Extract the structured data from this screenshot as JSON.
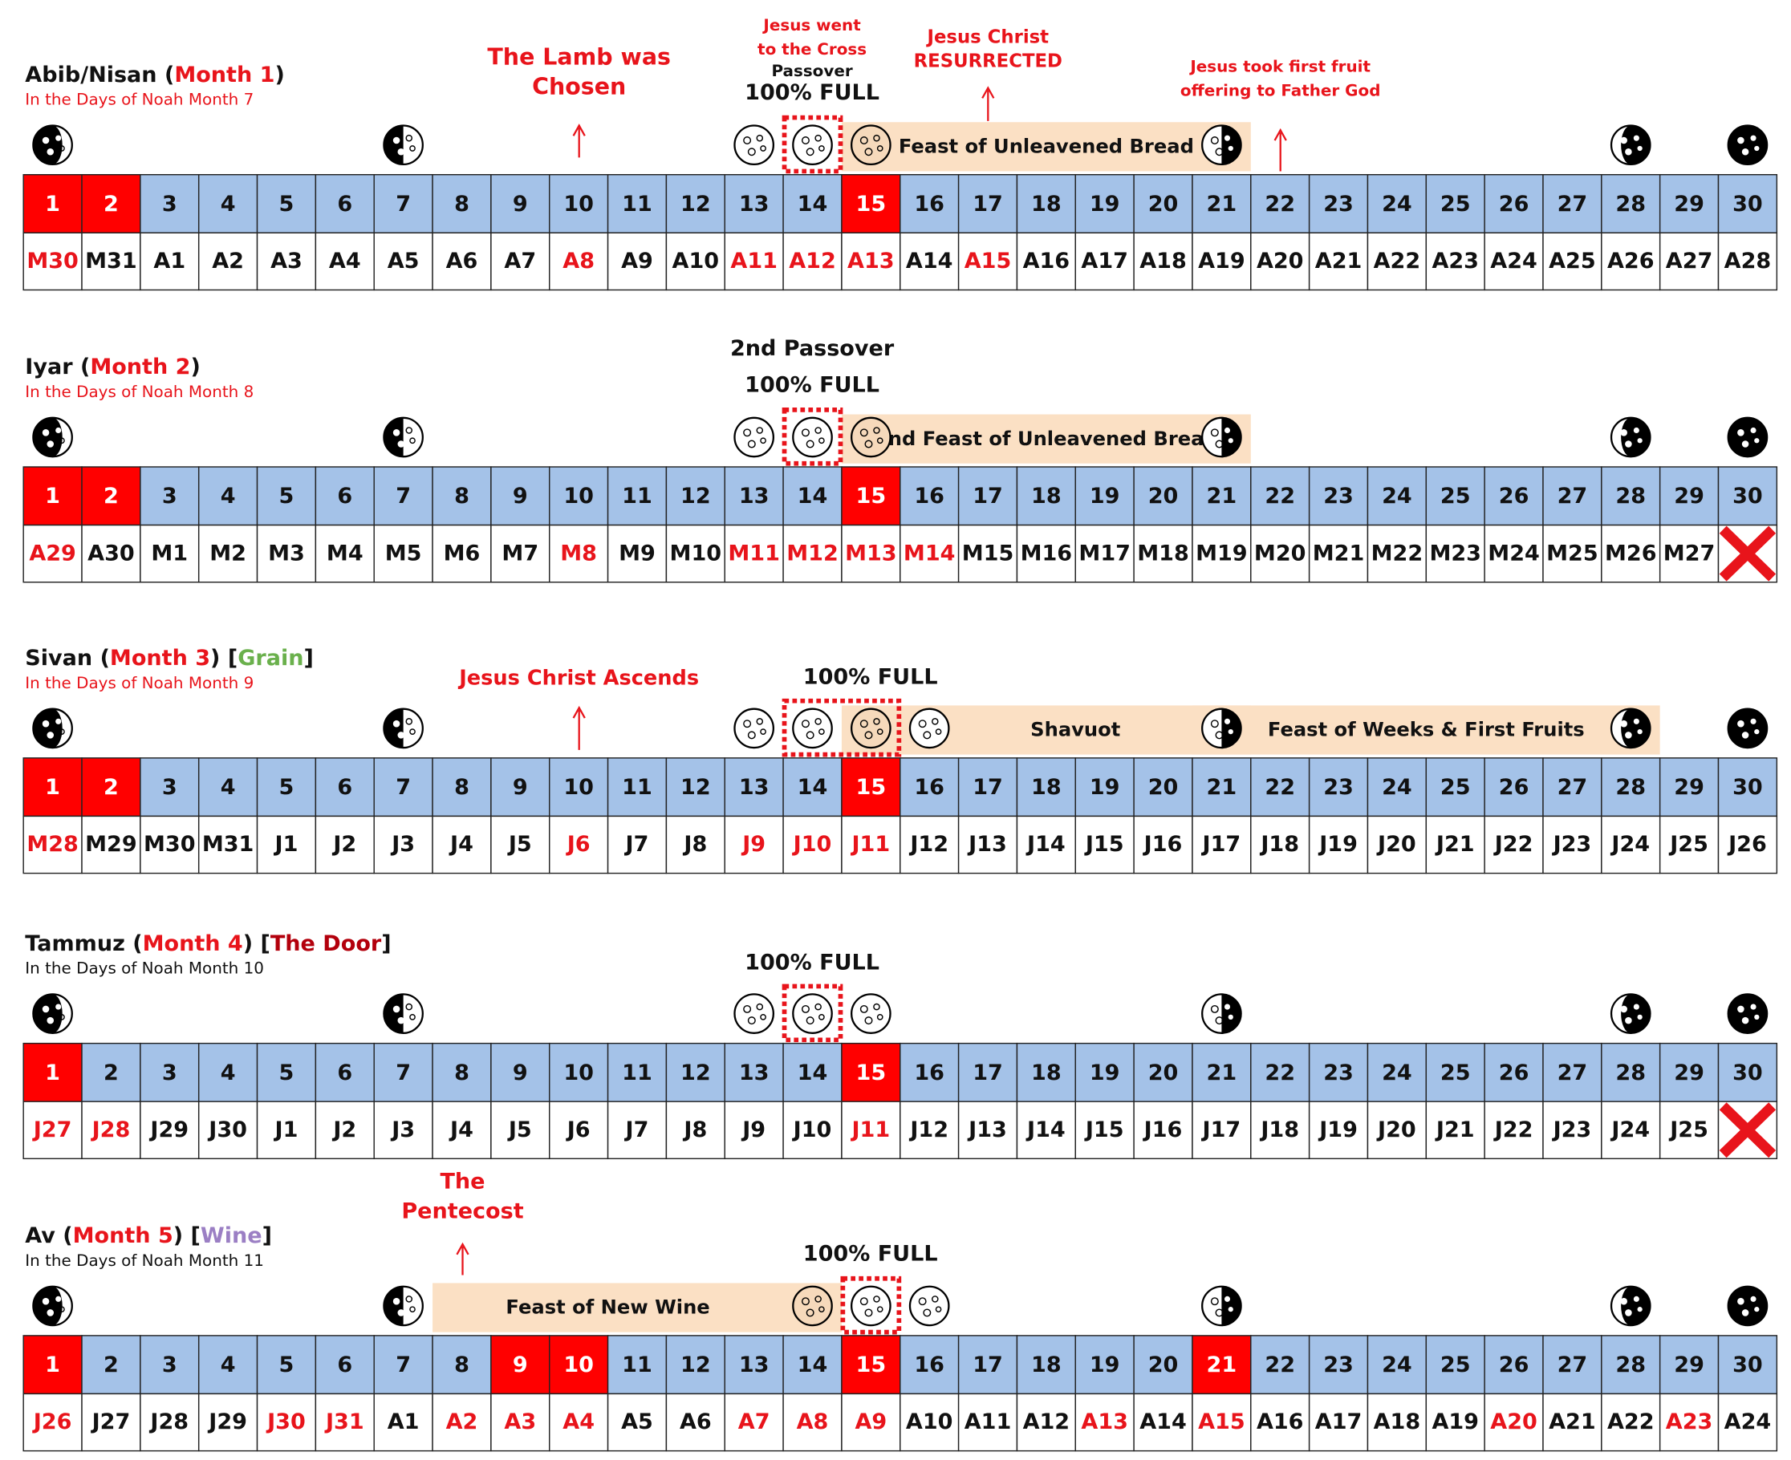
{
  "months": [
    {
      "title": [
        {
          "text": "Abib/Nisan (",
          "color": "#111111"
        },
        {
          "text": "Month 1",
          "color": "#e8141b"
        },
        {
          "text": ")",
          "color": "#111111"
        }
      ],
      "subtitle": "In the Days of Noah Month 7",
      "subtitle_color": "#e8141b",
      "days": [
        1,
        2,
        3,
        4,
        5,
        6,
        7,
        8,
        9,
        10,
        11,
        12,
        13,
        14,
        15,
        16,
        17,
        18,
        19,
        20,
        21,
        22,
        23,
        24,
        25,
        26,
        27,
        28,
        29,
        30
      ],
      "dates": [
        "M30",
        "M31",
        "A1",
        "A2",
        "A3",
        "A4",
        "A5",
        "A6",
        "A7",
        "A8",
        "A9",
        "A10",
        "A11",
        "A12",
        "A13",
        "A14",
        "A15",
        "A16",
        "A17",
        "A18",
        "A19",
        "A20",
        "A21",
        "A22",
        "A23",
        "A24",
        "A25",
        "A26",
        "A27",
        "A28"
      ],
      "highlight_days": [
        1,
        2,
        15
      ],
      "red_dates": [
        1,
        10,
        13,
        14,
        15,
        17
      ],
      "moons": [
        {
          "day": 1,
          "phase": "crescent"
        },
        {
          "day": 7,
          "phase": "first"
        },
        {
          "day": 13,
          "phase": "full"
        },
        {
          "day": 14,
          "phase": "full"
        },
        {
          "day": 15,
          "phase": "full-tan"
        },
        {
          "day": 21,
          "phase": "last"
        },
        {
          "day": 28,
          "phase": "waning"
        },
        {
          "day": 30,
          "phase": "new"
        }
      ],
      "box_days": [
        14,
        14
      ],
      "feasts": [
        {
          "label": "Feast of Unleavened Bread",
          "days": [
            15,
            21
          ]
        }
      ]
    },
    {
      "title": [
        {
          "text": "Iyar (",
          "color": "#111111"
        },
        {
          "text": "Month 2",
          "color": "#e8141b"
        },
        {
          "text": ")",
          "color": "#111111"
        }
      ],
      "subtitle": "In the Days of Noah Month 8",
      "subtitle_color": "#e8141b",
      "days": [
        1,
        2,
        3,
        4,
        5,
        6,
        7,
        8,
        9,
        10,
        11,
        12,
        13,
        14,
        15,
        16,
        17,
        18,
        19,
        20,
        21,
        22,
        23,
        24,
        25,
        26,
        27,
        28,
        29,
        30
      ],
      "dates": [
        "A29",
        "A30",
        "M1",
        "M2",
        "M3",
        "M4",
        "M5",
        "M6",
        "M7",
        "M8",
        "M9",
        "M10",
        "M11",
        "M12",
        "M13",
        "M14",
        "M15",
        "M16",
        "M17",
        "M18",
        "M19",
        "M20",
        "M21",
        "M22",
        "M23",
        "M24",
        "M25",
        "M26",
        "M27",
        null
      ],
      "highlight_days": [
        1,
        2,
        15
      ],
      "red_dates": [
        1,
        10,
        13,
        14,
        15,
        16
      ],
      "moons": [
        {
          "day": 1,
          "phase": "crescent"
        },
        {
          "day": 7,
          "phase": "first"
        },
        {
          "day": 13,
          "phase": "full"
        },
        {
          "day": 14,
          "phase": "full"
        },
        {
          "day": 15,
          "phase": "full-tan"
        },
        {
          "day": 21,
          "phase": "last"
        },
        {
          "day": 28,
          "phase": "waning"
        },
        {
          "day": 30,
          "phase": "new"
        }
      ],
      "box_days": [
        14,
        14
      ],
      "feasts": [
        {
          "label": "2nd Feast of Unleavened Bread",
          "days": [
            15,
            21
          ]
        }
      ]
    },
    {
      "title": [
        {
          "text": "Sivan (",
          "color": "#111111"
        },
        {
          "text": "Month 3",
          "color": "#e8141b"
        },
        {
          "text": ") [",
          "color": "#111111"
        },
        {
          "text": "Grain",
          "color": "#6ab04c"
        },
        {
          "text": "]",
          "color": "#111111"
        }
      ],
      "subtitle": "In the Days of Noah Month 9",
      "subtitle_color": "#e8141b",
      "days": [
        1,
        2,
        3,
        4,
        5,
        6,
        7,
        8,
        9,
        10,
        11,
        12,
        13,
        14,
        15,
        16,
        17,
        18,
        19,
        20,
        21,
        22,
        23,
        24,
        25,
        26,
        27,
        28,
        29,
        30
      ],
      "dates": [
        "M28",
        "M29",
        "M30",
        "M31",
        "J1",
        "J2",
        "J3",
        "J4",
        "J5",
        "J6",
        "J7",
        "J8",
        "J9",
        "J10",
        "J11",
        "J12",
        "J13",
        "J14",
        "J15",
        "J16",
        "J17",
        "J18",
        "J19",
        "J20",
        "J21",
        "J22",
        "J23",
        "J24",
        "J25",
        "J26"
      ],
      "highlight_days": [
        1,
        2,
        15
      ],
      "red_dates": [
        1,
        10,
        13,
        14,
        15
      ],
      "moons": [
        {
          "day": 1,
          "phase": "crescent"
        },
        {
          "day": 7,
          "phase": "first"
        },
        {
          "day": 13,
          "phase": "full"
        },
        {
          "day": 14,
          "phase": "full"
        },
        {
          "day": 15,
          "phase": "full-tan"
        },
        {
          "day": 16,
          "phase": "full"
        },
        {
          "day": 21,
          "phase": "last"
        },
        {
          "day": 28,
          "phase": "waning"
        },
        {
          "day": 30,
          "phase": "new"
        }
      ],
      "box_days": [
        14,
        15
      ],
      "feasts": [
        {
          "label": "Shavuot",
          "days": [
            15,
            21
          ]
        },
        {
          "label": "Feast of Weeks & First Fruits",
          "days": [
            21,
            28
          ]
        }
      ]
    },
    {
      "title": [
        {
          "text": "Tammuz (",
          "color": "#111111"
        },
        {
          "text": "Month 4",
          "color": "#e8141b"
        },
        {
          "text": ") [",
          "color": "#111111"
        },
        {
          "text": "The Door",
          "color": "#b3000c"
        },
        {
          "text": "]",
          "color": "#111111"
        }
      ],
      "subtitle": "In the Days of Noah Month 10",
      "subtitle_color": "#111111",
      "days": [
        1,
        2,
        3,
        4,
        5,
        6,
        7,
        8,
        9,
        10,
        11,
        12,
        13,
        14,
        15,
        16,
        17,
        18,
        19,
        20,
        21,
        22,
        23,
        24,
        25,
        26,
        27,
        28,
        29,
        30
      ],
      "dates": [
        "J27",
        "J28",
        "J29",
        "J30",
        "J1",
        "J2",
        "J3",
        "J4",
        "J5",
        "J6",
        "J7",
        "J8",
        "J9",
        "J10",
        "J11",
        "J12",
        "J13",
        "J14",
        "J15",
        "J16",
        "J17",
        "J18",
        "J19",
        "J20",
        "J21",
        "J22",
        "J23",
        "J24",
        "J25",
        null
      ],
      "highlight_days": [
        1,
        15
      ],
      "red_dates": [
        1,
        2,
        15
      ],
      "moons": [
        {
          "day": 1,
          "phase": "crescent"
        },
        {
          "day": 7,
          "phase": "first"
        },
        {
          "day": 13,
          "phase": "full"
        },
        {
          "day": 14,
          "phase": "full"
        },
        {
          "day": 15,
          "phase": "full"
        },
        {
          "day": 21,
          "phase": "last"
        },
        {
          "day": 28,
          "phase": "waning"
        },
        {
          "day": 30,
          "phase": "new"
        }
      ],
      "box_days": [
        14,
        14
      ],
      "feasts": []
    },
    {
      "title": [
        {
          "text": "Av (",
          "color": "#111111"
        },
        {
          "text": "Month 5",
          "color": "#e8141b"
        },
        {
          "text": ") [",
          "color": "#111111"
        },
        {
          "text": "Wine",
          "color": "#9b7fc4"
        },
        {
          "text": "]",
          "color": "#111111"
        }
      ],
      "subtitle": "In the Days of Noah Month 11",
      "subtitle_color": "#111111",
      "days": [
        1,
        2,
        3,
        4,
        5,
        6,
        7,
        8,
        9,
        10,
        11,
        12,
        13,
        14,
        15,
        16,
        17,
        18,
        19,
        20,
        21,
        22,
        23,
        24,
        25,
        26,
        27,
        28,
        29,
        30
      ],
      "dates": [
        "J26",
        "J27",
        "J28",
        "J29",
        "J30",
        "J31",
        "A1",
        "A2",
        "A3",
        "A4",
        "A5",
        "A6",
        "A7",
        "A8",
        "A9",
        "A10",
        "A11",
        "A12",
        "A13",
        "A14",
        "A15",
        "A16",
        "A17",
        "A18",
        "A19",
        "A20",
        "A21",
        "A22",
        "A23",
        "A24"
      ],
      "highlight_days": [
        1,
        9,
        10,
        15,
        21
      ],
      "red_dates": [
        1,
        5,
        6,
        8,
        9,
        10,
        13,
        14,
        15,
        19,
        21,
        26,
        29
      ],
      "moons": [
        {
          "day": 1,
          "phase": "crescent"
        },
        {
          "day": 7,
          "phase": "first"
        },
        {
          "day": 14,
          "phase": "full-tan"
        },
        {
          "day": 15,
          "phase": "full"
        },
        {
          "day": 16,
          "phase": "full"
        },
        {
          "day": 21,
          "phase": "last"
        },
        {
          "day": 28,
          "phase": "waning"
        },
        {
          "day": 30,
          "phase": "new"
        }
      ],
      "box_days": [
        15,
        15
      ],
      "feasts": [
        {
          "label": "Feast of New Wine",
          "days": [
            8,
            14
          ]
        }
      ]
    }
  ],
  "annotations": {
    "lamb": [
      "The Lamb was",
      "Chosen"
    ],
    "cross": [
      "Jesus went",
      "to the Cross"
    ],
    "passover": "Passover",
    "full_1": "100% FULL",
    "resurrected": [
      "Jesus Christ",
      "RESURRECTED"
    ],
    "first_fruit": [
      "Jesus took first fruit",
      "offering to Father God"
    ],
    "second_passover": "2nd Passover",
    "full_2": "100% FULL",
    "ascends": "Jesus Christ Ascends",
    "full_3": "100% FULL",
    "full_4": "100% FULL",
    "pentecost": [
      "The",
      "Pentecost"
    ],
    "full_5": "100% FULL"
  }
}
